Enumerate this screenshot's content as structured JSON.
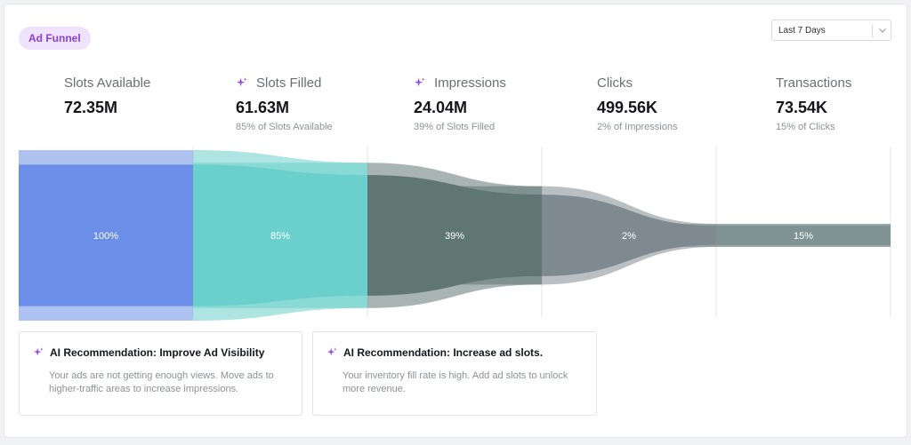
{
  "header": {
    "badge": "Ad Funnel",
    "date_range": {
      "selected": "Last 7 Days"
    }
  },
  "metrics": [
    {
      "label": "Slots Available",
      "value": "72.35M",
      "sub": "",
      "ai_icon": false
    },
    {
      "label": "Slots Filled",
      "value": "61.63M",
      "sub": "85% of Slots Available",
      "ai_icon": true
    },
    {
      "label": "Impressions",
      "value": "24.04M",
      "sub": "39% of Slots Filled",
      "ai_icon": true
    },
    {
      "label": "Clicks",
      "value": "499.56K",
      "sub": "2% of Impressions",
      "ai_icon": false
    },
    {
      "label": "Transactions",
      "value": "73.54K",
      "sub": "15% of Clicks",
      "ai_icon": false
    }
  ],
  "chart_data": {
    "type": "funnel",
    "categories": [
      "Slots Available",
      "Slots Filled",
      "Impressions",
      "Clicks",
      "Transactions"
    ],
    "values": [
      72.35,
      61.63,
      24.04,
      0.49956,
      0.07354
    ],
    "unit": "M",
    "step_percent_labels": [
      "100%",
      "85%",
      "39%",
      "2%",
      "15%"
    ],
    "colors": [
      "#6b8fe8",
      "#6bcfcb",
      "#5f7673",
      "#7f8a90",
      "#7f9294"
    ],
    "grid": true
  },
  "recommendations": [
    {
      "title": "AI Recommendation: Improve Ad Visibility",
      "body": "Your ads are not getting enough views. Move ads to higher-traffic areas to increase impressions."
    },
    {
      "title": "AI Recommendation: Increase ad slots.",
      "body": "Your inventory fill rate is high. Add ad slots to unlock more revenue."
    }
  ],
  "colors": {
    "accent_purple": "#8a3fd6",
    "badge_bg": "#efe3fb"
  },
  "icons": {
    "ai": "sparkle-icon",
    "dropdown": "chevron-down-icon"
  }
}
